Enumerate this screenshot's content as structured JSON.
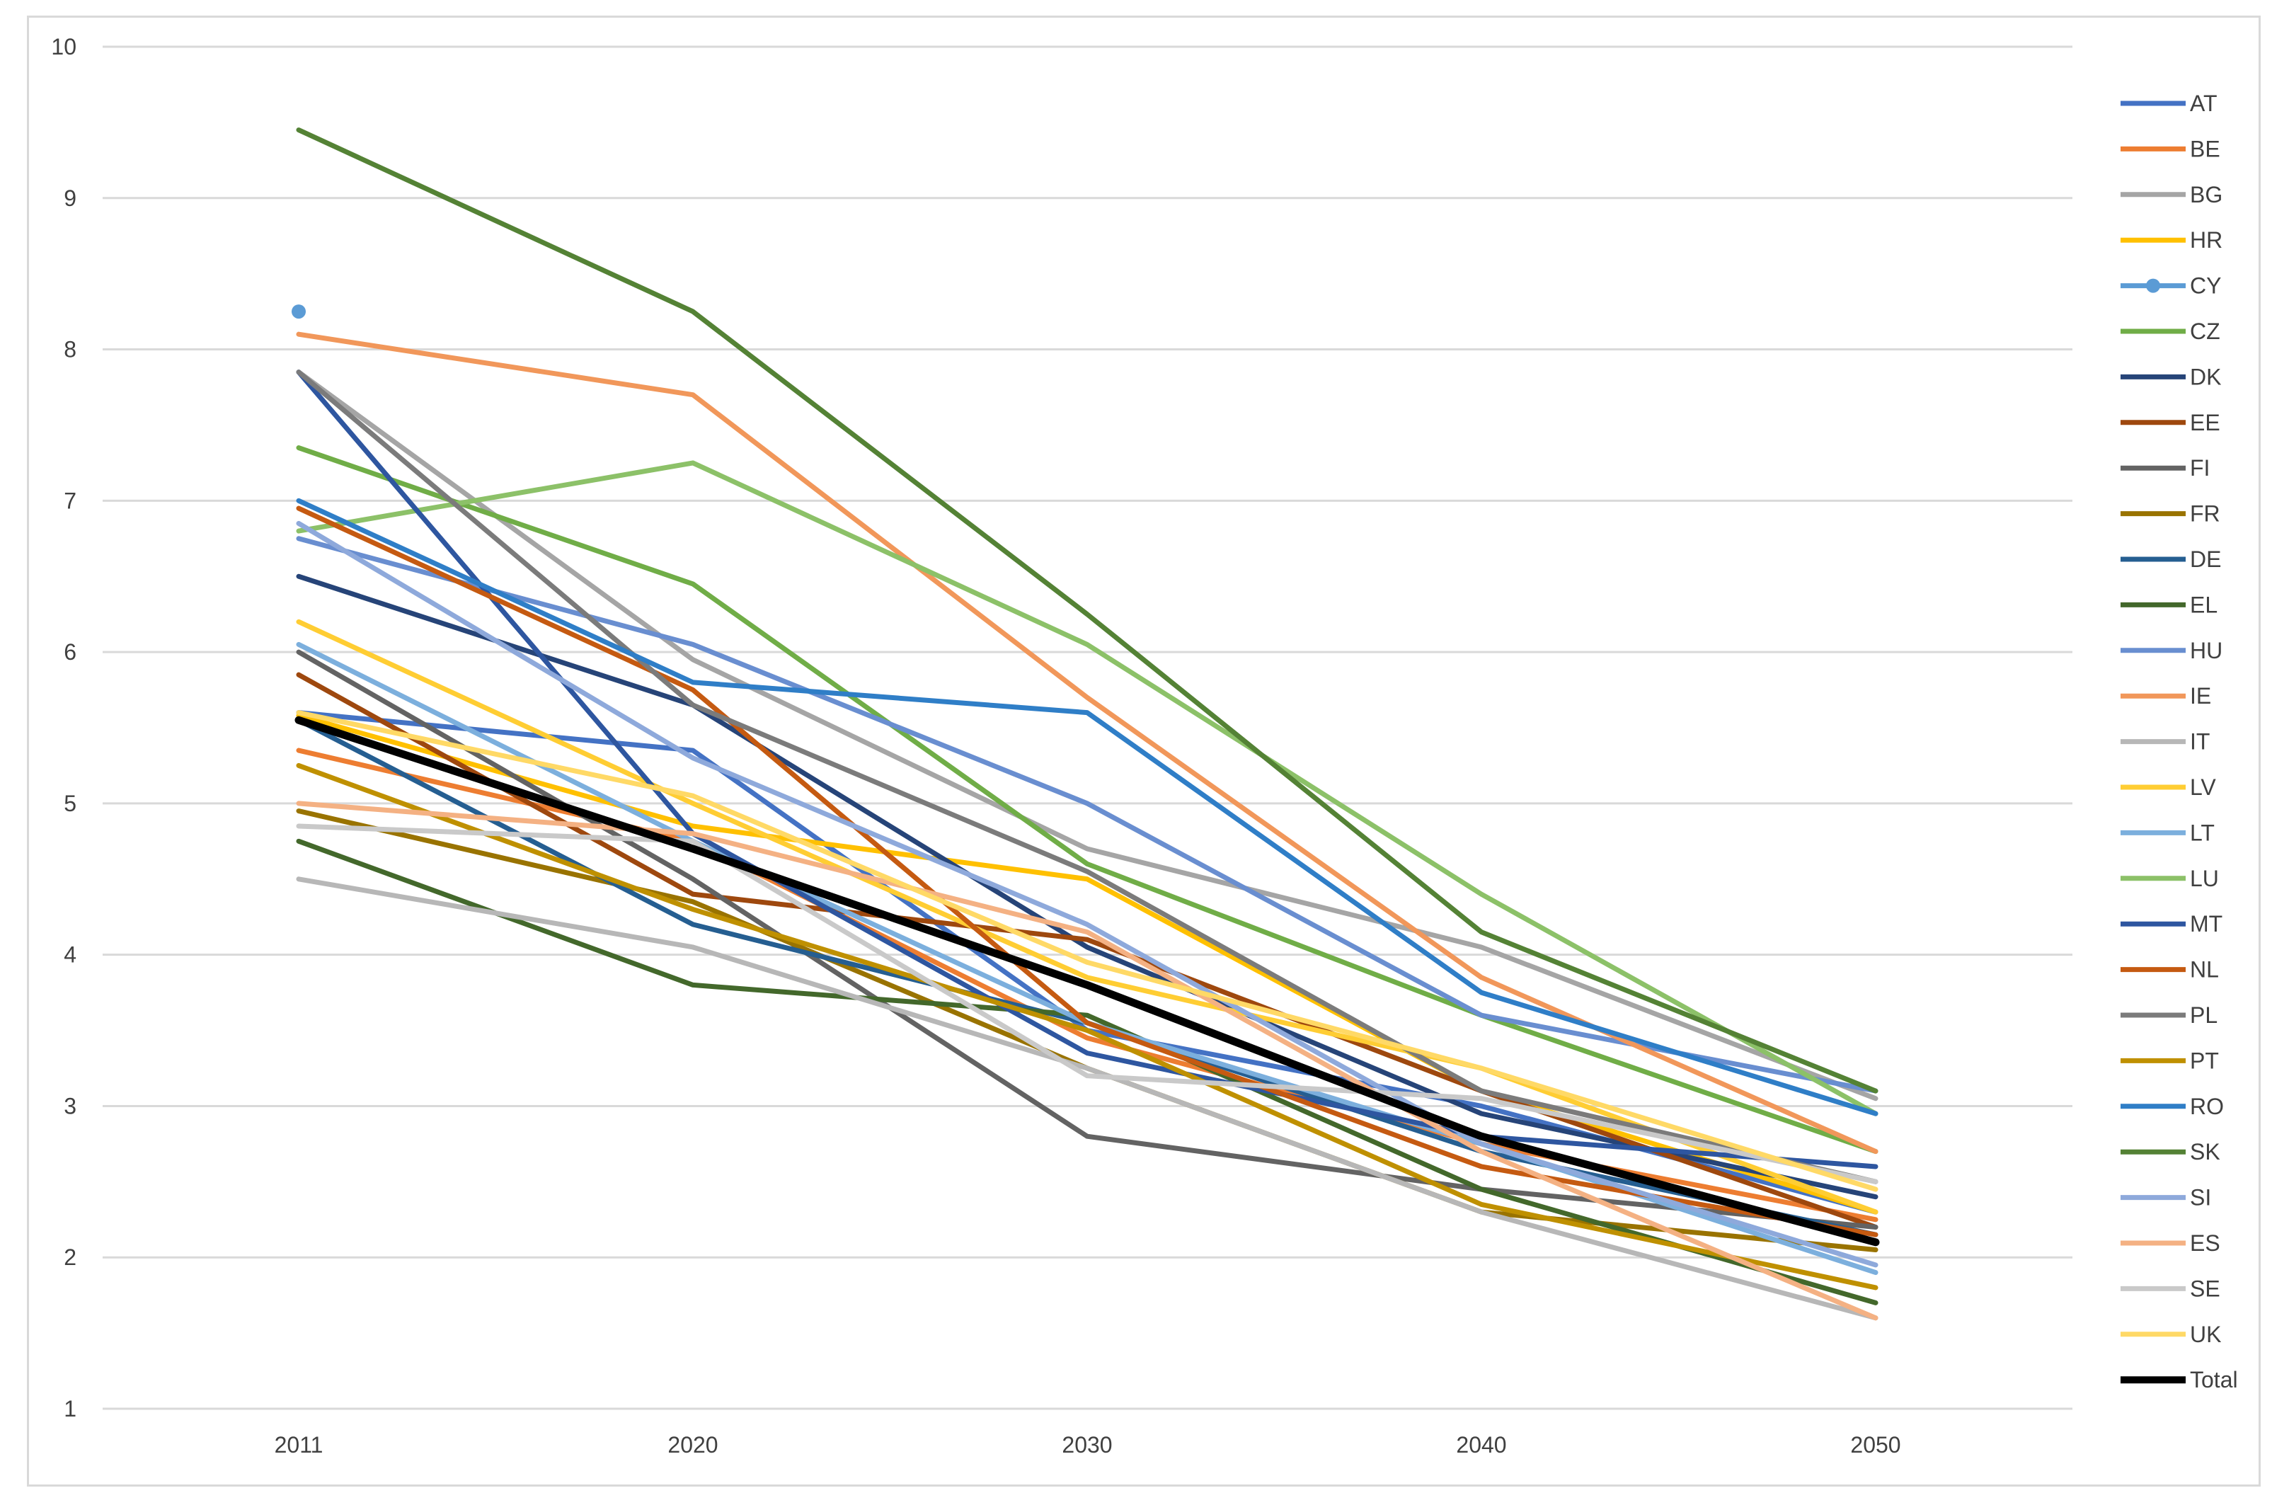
{
  "chart_data": {
    "type": "line",
    "title": "",
    "xlabel": "",
    "ylabel": "",
    "categories": [
      "2011",
      "2020",
      "2030",
      "2040",
      "2050"
    ],
    "ylim": [
      1,
      10
    ],
    "yticks": [
      1,
      2,
      3,
      4,
      5,
      6,
      7,
      8,
      9,
      10
    ],
    "grid": true,
    "legend_position": "right",
    "series": [
      {
        "name": "AT",
        "color": "#4472C4",
        "values": [
          5.6,
          5.35,
          3.5,
          3.0,
          2.3
        ]
      },
      {
        "name": "BE",
        "color": "#ED7D31",
        "values": [
          5.35,
          4.75,
          3.45,
          2.75,
          2.25
        ]
      },
      {
        "name": "BG",
        "color": "#A5A5A5",
        "values": [
          7.85,
          5.95,
          4.7,
          4.05,
          3.05
        ]
      },
      {
        "name": "HR",
        "color": "#FFC000",
        "values": [
          5.58,
          4.85,
          4.5,
          3.1,
          2.3
        ]
      },
      {
        "name": "CY",
        "color": "#5B9BD5",
        "marker": true,
        "values": [
          8.25,
          null,
          null,
          null,
          null
        ]
      },
      {
        "name": "CZ",
        "color": "#70AD47",
        "values": [
          7.35,
          6.45,
          4.6,
          3.6,
          2.7
        ]
      },
      {
        "name": "DK",
        "color": "#264478",
        "values": [
          6.5,
          5.65,
          4.05,
          2.95,
          2.4
        ]
      },
      {
        "name": "EE",
        "color": "#9E480E",
        "values": [
          5.85,
          4.4,
          4.1,
          3.1,
          2.2
        ]
      },
      {
        "name": "FI",
        "color": "#636363",
        "values": [
          6.0,
          4.5,
          2.8,
          2.45,
          2.2
        ]
      },
      {
        "name": "FR",
        "color": "#997300",
        "values": [
          4.95,
          4.35,
          3.25,
          2.3,
          2.05
        ]
      },
      {
        "name": "DE",
        "color": "#255E91",
        "values": [
          5.55,
          4.2,
          3.55,
          2.7,
          2.15
        ]
      },
      {
        "name": "EL",
        "color": "#43682B",
        "values": [
          4.75,
          3.8,
          3.6,
          2.45,
          1.7
        ]
      },
      {
        "name": "HU",
        "color": "#698ED0",
        "values": [
          6.75,
          6.05,
          5.0,
          3.6,
          3.1
        ]
      },
      {
        "name": "IE",
        "color": "#F1975A",
        "values": [
          8.1,
          7.7,
          5.7,
          3.85,
          2.7
        ]
      },
      {
        "name": "IT",
        "color": "#B7B7B7",
        "values": [
          4.5,
          4.05,
          3.25,
          2.3,
          1.6
        ]
      },
      {
        "name": "LV",
        "color": "#FFCD33",
        "values": [
          6.2,
          5.0,
          3.85,
          3.25,
          2.3
        ]
      },
      {
        "name": "LT",
        "color": "#7CAFDD",
        "values": [
          6.05,
          4.75,
          3.55,
          2.75,
          1.9
        ]
      },
      {
        "name": "LU",
        "color": "#8CC168",
        "values": [
          6.8,
          7.25,
          6.05,
          4.4,
          2.95
        ]
      },
      {
        "name": "MT",
        "color": "#2E56A0",
        "values": [
          7.85,
          4.8,
          3.35,
          2.8,
          2.6
        ]
      },
      {
        "name": "NL",
        "color": "#C55A11",
        "values": [
          6.95,
          5.75,
          3.55,
          2.6,
          2.15
        ]
      },
      {
        "name": "PL",
        "color": "#7B7B7B",
        "values": [
          7.85,
          5.65,
          4.55,
          3.1,
          2.5
        ]
      },
      {
        "name": "PT",
        "color": "#BF9000",
        "values": [
          5.25,
          4.3,
          3.5,
          2.35,
          1.8
        ]
      },
      {
        "name": "RO",
        "color": "#2F7EC7",
        "values": [
          7.0,
          5.8,
          5.6,
          3.75,
          2.95
        ]
      },
      {
        "name": "SK",
        "color": "#548235",
        "values": [
          9.45,
          8.25,
          6.25,
          4.15,
          3.1
        ]
      },
      {
        "name": "SI",
        "color": "#8EA9DB",
        "values": [
          6.85,
          5.3,
          4.2,
          2.75,
          1.95
        ]
      },
      {
        "name": "ES",
        "color": "#F4B183",
        "values": [
          5.0,
          4.8,
          4.15,
          2.7,
          1.6
        ]
      },
      {
        "name": "SE",
        "color": "#C9C9C9",
        "values": [
          4.85,
          4.75,
          3.2,
          3.05,
          2.5
        ]
      },
      {
        "name": "UK",
        "color": "#FFD966",
        "values": [
          5.6,
          5.05,
          3.95,
          3.25,
          2.45
        ]
      },
      {
        "name": "Total",
        "color": "#000000",
        "bold": true,
        "values": [
          5.55,
          4.7,
          3.8,
          2.8,
          2.1
        ]
      }
    ]
  }
}
